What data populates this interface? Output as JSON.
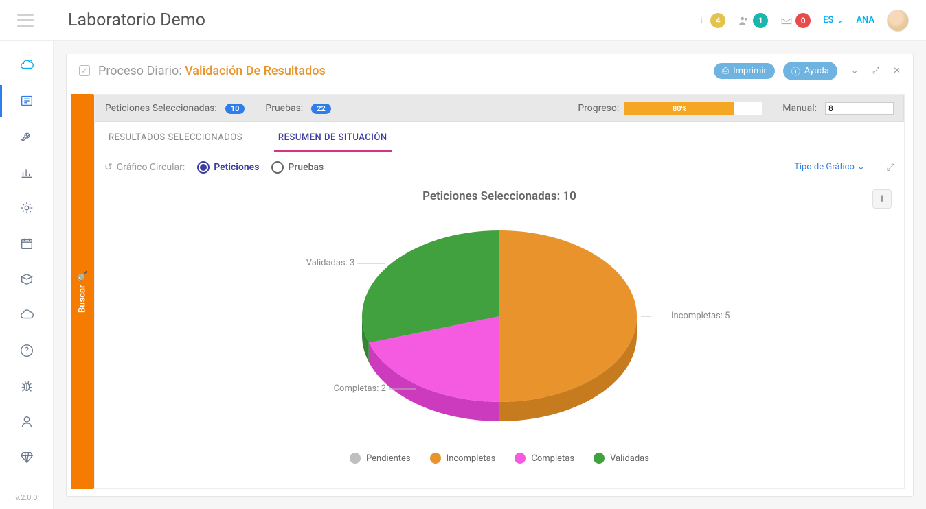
{
  "topbar": {
    "title": "Laboratorio Demo",
    "alerts_count": "4",
    "users_count": "1",
    "mail_count": "0",
    "language": "ES",
    "user_name": "ANA"
  },
  "sidebar": {
    "version": "v.2.0.0",
    "items": [
      {
        "name": "cloud-icon"
      },
      {
        "name": "news-icon",
        "active": true
      },
      {
        "name": "wrench-icon"
      },
      {
        "name": "stats-icon"
      },
      {
        "name": "gear-icon"
      },
      {
        "name": "calendar-icon"
      },
      {
        "name": "box-icon"
      },
      {
        "name": "cloud-solid-icon"
      },
      {
        "name": "help-icon"
      },
      {
        "name": "bug-icon"
      },
      {
        "name": "user-icon"
      },
      {
        "name": "diamond-icon"
      }
    ]
  },
  "panel": {
    "breadcrumb_label": "Proceso Diario:",
    "title": "Validación De Resultados",
    "print_label": "Imprimir",
    "help_label": "Ayuda"
  },
  "search_tab": {
    "label": "Buscar"
  },
  "stats_bar": {
    "peticiones_label": "Peticiones Seleccionadas:",
    "peticiones_count": "10",
    "pruebas_label": "Pruebas:",
    "pruebas_count": "22",
    "progreso_label": "Progreso:",
    "progreso_pct": 80,
    "progreso_text": "80%",
    "progreso_color": "#f5a623",
    "manual_label": "Manual:",
    "manual_value": "8"
  },
  "tabs": {
    "resultados": "RESULTADOS SELECCIONADOS",
    "resumen": "RESUMEN DE SITUACIÓN"
  },
  "chart_controls": {
    "label": "Gráfico Circular:",
    "opt1": "Peticiones",
    "opt2": "Pruebas",
    "chart_type_link": "Tipo de Gráfico"
  },
  "chart": {
    "title": "Peticiones Seleccionadas: 10",
    "type": "pie-3d",
    "total": 10,
    "slices": [
      {
        "key": "incompletas",
        "label": "Incompletas",
        "value": 5,
        "color": "#e8932b",
        "side_color": "#c77b1f",
        "callout": "Incompletas: 5"
      },
      {
        "key": "completas",
        "label": "Completas",
        "value": 2,
        "color": "#f45be1",
        "side_color": "#cc3bbd",
        "callout": "Completas: 2"
      },
      {
        "key": "validadas",
        "label": "Validadas",
        "value": 3,
        "color": "#41a13f",
        "side_color": "#34852f",
        "callout": "Validadas: 3"
      }
    ],
    "legend": [
      {
        "label": "Pendientes",
        "color": "#bfbfbf"
      },
      {
        "label": "Incompletas",
        "color": "#e8932b"
      },
      {
        "label": "Completas",
        "color": "#f45be1"
      },
      {
        "label": "Validadas",
        "color": "#41a13f"
      }
    ]
  }
}
